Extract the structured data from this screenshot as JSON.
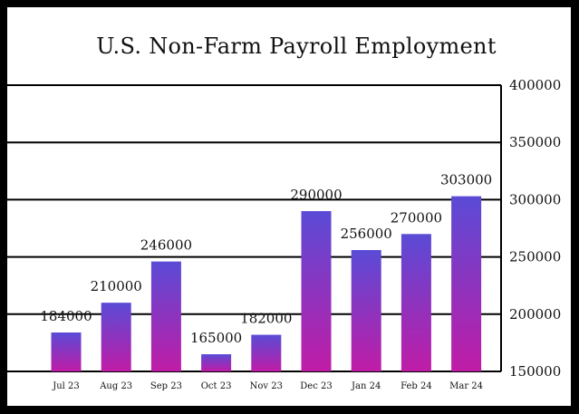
{
  "chart_data": {
    "type": "bar",
    "title": "U.S. Non-Farm Payroll Employment",
    "xlabel": "",
    "ylabel": "",
    "categories": [
      "Jul 23",
      "Aug 23",
      "Sep 23",
      "Oct 23",
      "Nov 23",
      "Dec 23",
      "Jan 24",
      "Feb 24",
      "Mar 24"
    ],
    "values": [
      184000,
      210000,
      246000,
      165000,
      182000,
      290000,
      256000,
      270000,
      303000
    ],
    "data_labels": [
      "184000",
      "210000",
      "246000",
      "165000",
      "182000",
      "290000",
      "256000",
      "270000",
      "303000"
    ],
    "ylim": [
      150000,
      400000
    ],
    "yticks": [
      150000,
      200000,
      250000,
      300000,
      350000,
      400000
    ],
    "ytick_labels": [
      "150000",
      "200000",
      "250000",
      "300000",
      "350000",
      "400000"
    ],
    "y_axis_side": "right",
    "grid": true,
    "legend": false,
    "colors": {
      "bar_top": "#5a4bd6",
      "bar_bottom": "#c01ca6",
      "grid": "#000000",
      "frame": "#000000"
    }
  }
}
